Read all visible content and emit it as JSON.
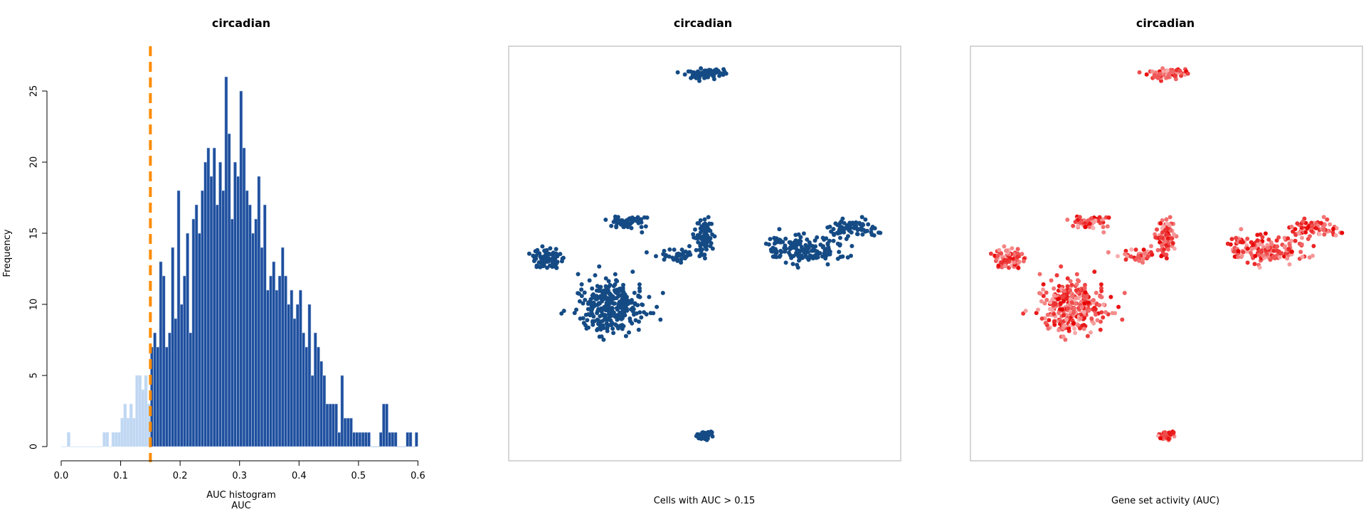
{
  "chart_data": [
    {
      "type": "bar",
      "title": "circadian",
      "xlabel": "AUC histogram",
      "xlabel2": "AUC",
      "ylabel": "Frequency",
      "xlim": [
        0.0,
        0.615
      ],
      "ylim": [
        0,
        26
      ],
      "xticks": [
        "0.0",
        "0.1",
        "0.2",
        "0.3",
        "0.4",
        "0.5",
        "0.6"
      ],
      "xtick_values": [
        0.0,
        0.1,
        0.2,
        0.3,
        0.4,
        0.5,
        0.6
      ],
      "yticks": [
        "0",
        "5",
        "10",
        "15",
        "20",
        "25"
      ],
      "ytick_values": [
        0,
        5,
        10,
        15,
        20,
        25
      ],
      "threshold": 0.15,
      "bin_start": 0.0,
      "bin_width": 0.005,
      "values": [
        0,
        0,
        1,
        0,
        0,
        0,
        0,
        0,
        0,
        0,
        0,
        0,
        0,
        0,
        1,
        1,
        0,
        1,
        1,
        1,
        2,
        3,
        2,
        3,
        2,
        5,
        5,
        4,
        5,
        3,
        7,
        8,
        7,
        13,
        12,
        7,
        8,
        14,
        9,
        18,
        10,
        12,
        15,
        8,
        16,
        17,
        15,
        18,
        20,
        21,
        19,
        21,
        17,
        20,
        18,
        26,
        22,
        16,
        20,
        19,
        25,
        21,
        18,
        17,
        15,
        16,
        19,
        14,
        17,
        11,
        12,
        13,
        11,
        12,
        14,
        12,
        10,
        11,
        9,
        10,
        11,
        8,
        7,
        10,
        5,
        8,
        7,
        6,
        5,
        3,
        3,
        3,
        3,
        1,
        5,
        2,
        2,
        2,
        1,
        1,
        1,
        1,
        1,
        1,
        0,
        0,
        0,
        1,
        3,
        3,
        1,
        1,
        1,
        0,
        0,
        0,
        1,
        1,
        0,
        1
      ],
      "colors": {
        "below": "#bfd7f2",
        "above": "#1f4f9e",
        "threshold_line": "#ff8c00"
      }
    },
    {
      "type": "scatter",
      "title": "circadian",
      "xlabel": "Cells with AUC > 0.15",
      "colors": {
        "points": "#154b85",
        "frame": "#c8c8c8"
      }
    },
    {
      "type": "scatter",
      "title": "circadian",
      "xlabel": "Gene set activity (AUC)",
      "colors": {
        "low": "#f8b2b2",
        "high": "#e80000",
        "frame": "#c8c8c8"
      }
    }
  ]
}
